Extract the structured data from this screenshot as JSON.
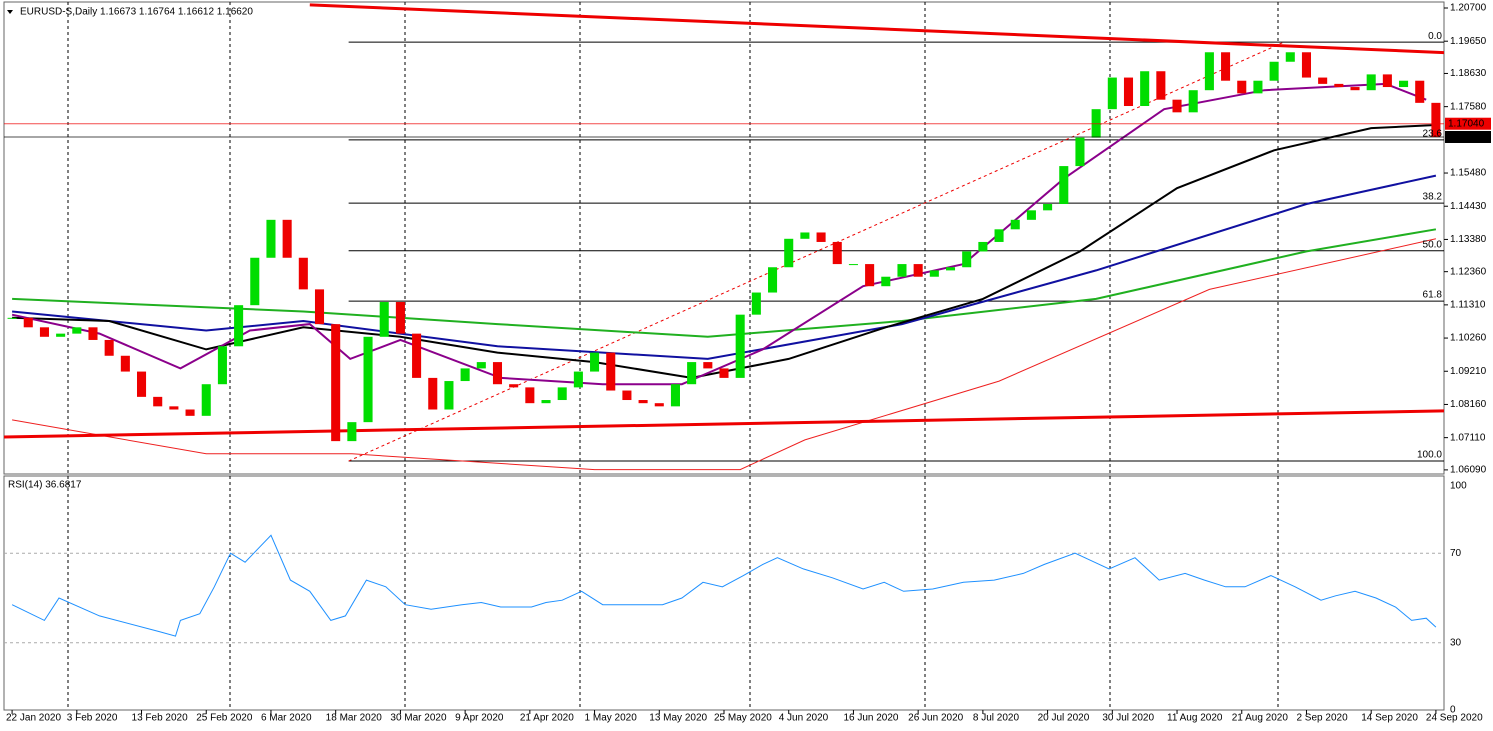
{
  "chart_data": {
    "type": "candlestick",
    "title": "EURUSD-S,Daily  1.16673 1.16764 1.16612 1.16620",
    "categories": [
      "22 Jan 2020",
      null,
      null,
      null,
      "3 Feb 2020",
      null,
      null,
      null,
      "13 Feb 2020",
      null,
      null,
      null,
      "25 Feb 2020",
      null,
      null,
      null,
      "6 Mar 2020",
      null,
      null,
      null,
      "18 Mar 2020",
      null,
      null,
      null,
      "30 Mar 2020",
      null,
      null,
      null,
      "9 Apr 2020",
      null,
      null,
      null,
      "21 Apr 2020",
      null,
      null,
      null,
      "1 May 2020",
      null,
      null,
      null,
      "13 May 2020",
      null,
      null,
      null,
      "25 May 2020",
      null,
      null,
      null,
      "4 Jun 2020",
      null,
      null,
      null,
      "16 Jun 2020",
      null,
      null,
      null,
      "26 Jun 2020",
      null,
      null,
      null,
      "8 Jul 2020",
      null,
      null,
      null,
      "20 Jul 2020",
      null,
      null,
      null,
      "30 Jul 2020",
      null,
      null,
      null,
      "11 Aug 2020",
      null,
      null,
      null,
      "21 Aug 2020",
      null,
      null,
      null,
      "2 Sep 2020",
      null,
      null,
      null,
      "14 Sep 2020",
      null,
      null,
      null,
      "24 Sep 2020"
    ],
    "close": [
      1.109,
      1.106,
      1.103,
      1.104,
      1.106,
      1.102,
      1.097,
      1.092,
      1.084,
      1.081,
      1.08,
      1.078,
      1.088,
      1.1,
      1.113,
      1.128,
      1.14,
      1.128,
      1.118,
      1.107,
      1.07,
      1.076,
      1.103,
      1.114,
      1.104,
      1.09,
      1.08,
      1.089,
      1.093,
      1.095,
      1.088,
      1.087,
      1.082,
      1.083,
      1.087,
      1.092,
      1.098,
      1.086,
      1.083,
      1.082,
      1.081,
      1.088,
      1.095,
      1.093,
      1.09,
      1.11,
      1.117,
      1.125,
      1.134,
      1.136,
      1.133,
      1.126,
      1.126,
      1.119,
      1.122,
      1.126,
      1.122,
      1.124,
      1.125,
      1.13,
      1.133,
      1.137,
      1.14,
      1.143,
      1.145,
      1.157,
      1.166,
      1.175,
      1.185,
      1.176,
      1.187,
      1.178,
      1.174,
      1.181,
      1.193,
      1.184,
      1.18,
      1.184,
      1.19,
      1.193,
      1.185,
      1.183,
      1.182,
      1.181,
      1.186,
      1.182,
      1.184,
      1.177,
      1.1662
    ],
    "up_color": "#00dd00",
    "down_color": "#ee0000",
    "ylim": [
      1.0596,
      1.2089
    ],
    "yticks": [
      {
        "value": 1.207,
        "label": "1.20700"
      },
      {
        "value": 1.1965,
        "label": "1.19650"
      },
      {
        "value": 1.1863,
        "label": "1.18630"
      },
      {
        "value": 1.1758,
        "label": "1.17580"
      },
      {
        "value": 1.1548,
        "label": "1.15480"
      },
      {
        "value": 1.1443,
        "label": "1.14430"
      },
      {
        "value": 1.1338,
        "label": "1.13380"
      },
      {
        "value": 1.1236,
        "label": "1.12360"
      },
      {
        "value": 1.1131,
        "label": "1.11310"
      },
      {
        "value": 1.1026,
        "label": "1.10260"
      },
      {
        "value": 1.0921,
        "label": "1.09210"
      },
      {
        "value": 1.0816,
        "label": "1.08160"
      },
      {
        "value": 1.0711,
        "label": "1.07110"
      },
      {
        "value": 1.0609,
        "label": "1.06090"
      }
    ],
    "overlays": [
      {
        "color": "#ee2020",
        "width": 1,
        "x": [
          0,
          12,
          21,
          36,
          45,
          49,
          61,
          74,
          88
        ],
        "values": [
          1.0767,
          1.066,
          1.066,
          1.061,
          1.061,
          1.0704,
          1.089,
          1.118,
          1.134
        ]
      },
      {
        "color": "#20b020",
        "width": 2,
        "x": [
          0,
          18,
          30,
          43,
          55,
          67,
          80,
          88
        ],
        "values": [
          1.115,
          1.111,
          1.107,
          1.103,
          1.108,
          1.115,
          1.13,
          1.137
        ]
      },
      {
        "color": "#1010a0",
        "width": 2,
        "x": [
          0,
          12,
          18,
          30,
          43,
          55,
          67,
          80,
          88
        ],
        "values": [
          1.111,
          1.105,
          1.108,
          1.1,
          1.096,
          1.107,
          1.124,
          1.145,
          1.154
        ]
      },
      {
        "color": "#000000",
        "width": 2,
        "x": [
          0,
          6,
          12,
          18,
          24,
          30,
          36,
          42,
          48,
          54,
          60,
          66,
          72,
          78,
          84,
          88
        ],
        "values": [
          1.109,
          1.108,
          1.099,
          1.106,
          1.103,
          1.098,
          1.095,
          1.09,
          1.096,
          1.106,
          1.115,
          1.13,
          1.15,
          1.162,
          1.169,
          1.17
        ]
      },
      {
        "color": "#8b008b",
        "width": 2,
        "x": [
          0,
          5.4,
          10.4,
          14.7,
          18.4,
          20.9,
          24,
          30.2,
          36.5,
          41.4,
          46.4,
          52.6,
          58.8,
          65,
          71.2,
          77.4,
          84.9,
          87.4
        ],
        "values": [
          1.11,
          1.104,
          1.093,
          1.105,
          1.107,
          1.096,
          1.102,
          1.09,
          1.088,
          1.088,
          1.099,
          1.119,
          1.126,
          1.153,
          1.175,
          1.181,
          1.183,
          1.178
        ]
      }
    ],
    "trendlines": [
      {
        "color": "#ee0000",
        "x": [
          18.4,
          91.7
        ],
        "values": [
          1.208,
          1.1922
        ]
      },
      {
        "color": "#ee0000",
        "x": [
          -0.5,
          88.9
        ],
        "values": [
          1.0713,
          1.0796
        ]
      }
    ],
    "levels": [
      {
        "value": 1.1704,
        "label": "1.17040",
        "color": "#ee0000"
      },
      {
        "value": 1.1662,
        "label": "1.16620",
        "color": "#000000"
      }
    ],
    "fib": {
      "color": "#000000",
      "x": [
        20.8,
        88.9
      ],
      "levels": [
        {
          "value": 1.1962,
          "label": "0.0"
        },
        {
          "value": 1.1653,
          "label": "23.6"
        },
        {
          "value": 1.1453,
          "label": "38.2"
        },
        {
          "value": 1.1302,
          "label": "50.0"
        },
        {
          "value": 1.1143,
          "label": "61.8"
        },
        {
          "value": 1.0637,
          "label": "100.0"
        }
      ],
      "diagonal": {
        "x": [
          20.8,
          78.6
        ],
        "values": [
          1.0637,
          1.1962
        ]
      }
    },
    "rsi": {
      "label": "RSI(14) 36.6817",
      "color": "#1e90ff",
      "ylim": [
        0,
        100
      ],
      "yticks": [
        0,
        30,
        70,
        100
      ],
      "x": [
        0,
        2,
        2.9,
        5.4,
        9.1,
        10.1,
        10.4,
        11.6,
        12.5,
        13.5,
        14.4,
        16,
        17.2,
        18.4,
        19.7,
        20.6,
        21.9,
        23.1,
        24.3,
        25.9,
        27.8,
        29,
        30.2,
        32.1,
        33,
        34,
        35.2,
        36.5,
        38.3,
        40.2,
        41.4,
        42.7,
        43.9,
        45.2,
        46.4,
        47.3,
        48.9,
        50.7,
        52.6,
        53.9,
        55.1,
        56.9,
        58.8,
        60.7,
        62.5,
        63.8,
        65.7,
        66.9,
        67.8,
        69.4,
        70.9,
        72.5,
        73.7,
        75,
        76.2,
        77.8,
        79.3,
        80.9,
        81.8,
        83,
        84.3,
        85.5,
        86.5,
        87.4,
        88
      ],
      "values": [
        47,
        40,
        50,
        42,
        35,
        33,
        40,
        43,
        55,
        70,
        66,
        78,
        58,
        53,
        40,
        42,
        58,
        55,
        47,
        45,
        47,
        48,
        46,
        46,
        48,
        49,
        53,
        47,
        47,
        47,
        50,
        57,
        55,
        60,
        65,
        68,
        63,
        59,
        54,
        57,
        53,
        54,
        57,
        58,
        61,
        65,
        70,
        66,
        63,
        68,
        58,
        61,
        58,
        55,
        55,
        60,
        55,
        49,
        51,
        53,
        50,
        46,
        40,
        41,
        37
      ]
    }
  }
}
